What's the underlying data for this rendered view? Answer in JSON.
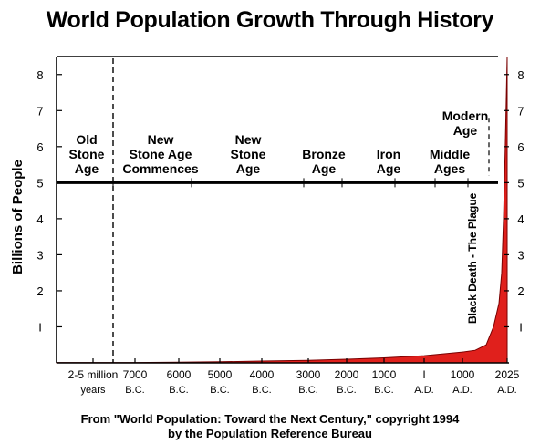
{
  "chart_data": {
    "type": "area",
    "title": "World Population Growth Through History",
    "ylabel": "Billions of People",
    "ylim": [
      0,
      8.5
    ],
    "y_ticks": [
      1,
      2,
      3,
      4,
      5,
      6,
      7,
      8
    ],
    "y_tick_labels": [
      "I",
      "2",
      "3",
      "4",
      "5",
      "6",
      "7",
      "8"
    ],
    "x_ticks": [
      {
        "line1": "2-5 million",
        "line2": "years"
      },
      {
        "line1": "7000",
        "line2": "B.C."
      },
      {
        "line1": "6000",
        "line2": "B.C."
      },
      {
        "line1": "5000",
        "line2": "B.C."
      },
      {
        "line1": "4000",
        "line2": "B.C."
      },
      {
        "line1": "3000",
        "line2": "B.C."
      },
      {
        "line1": "2000",
        "line2": "B.C."
      },
      {
        "line1": "1000",
        "line2": "B.C."
      },
      {
        "line1": "I",
        "line2": "A.D."
      },
      {
        "line1": "1000",
        "line2": "A.D."
      },
      {
        "line1": "2025",
        "line2": "A.D."
      }
    ],
    "series": [
      {
        "name": "",
        "color": "#e0201c",
        "x": [
          "2-5 million years",
          "7000 B.C.",
          "6000 B.C.",
          "5000 B.C.",
          "4000 B.C.",
          "3000 B.C.",
          "2000 B.C.",
          "1000 B.C.",
          "1 A.D.",
          "1000 A.D.",
          "1350 A.D.",
          "1650 A.D.",
          "1800 A.D.",
          "1900 A.D.",
          "1950 A.D.",
          "1975 A.D.",
          "2000 A.D.",
          "2025 A.D."
        ],
        "values": [
          0.01,
          0.01,
          0.02,
          0.03,
          0.05,
          0.07,
          0.1,
          0.14,
          0.2,
          0.3,
          0.35,
          0.5,
          1.0,
          1.65,
          2.5,
          4.0,
          6.1,
          8.5
        ]
      }
    ],
    "ages": [
      {
        "lines": [
          "Old",
          "Stone",
          "Age"
        ]
      },
      {
        "lines": [
          "New",
          "Stone Age",
          "Commences"
        ]
      },
      {
        "lines": [
          "New",
          "Stone",
          "Age"
        ]
      },
      {
        "lines": [
          "Bronze",
          "Age"
        ]
      },
      {
        "lines": [
          "Iron",
          "Age"
        ]
      },
      {
        "lines": [
          "Middle",
          "Ages"
        ]
      },
      {
        "lines": [
          "Modern",
          "Age"
        ]
      }
    ],
    "annotation": "Black Death - The Plague",
    "grid": false,
    "legend": "none"
  },
  "credit": {
    "line1": "From \"World Population: Toward the Next Century,\" copyright 1994",
    "line2": "by the Population Reference Bureau"
  }
}
